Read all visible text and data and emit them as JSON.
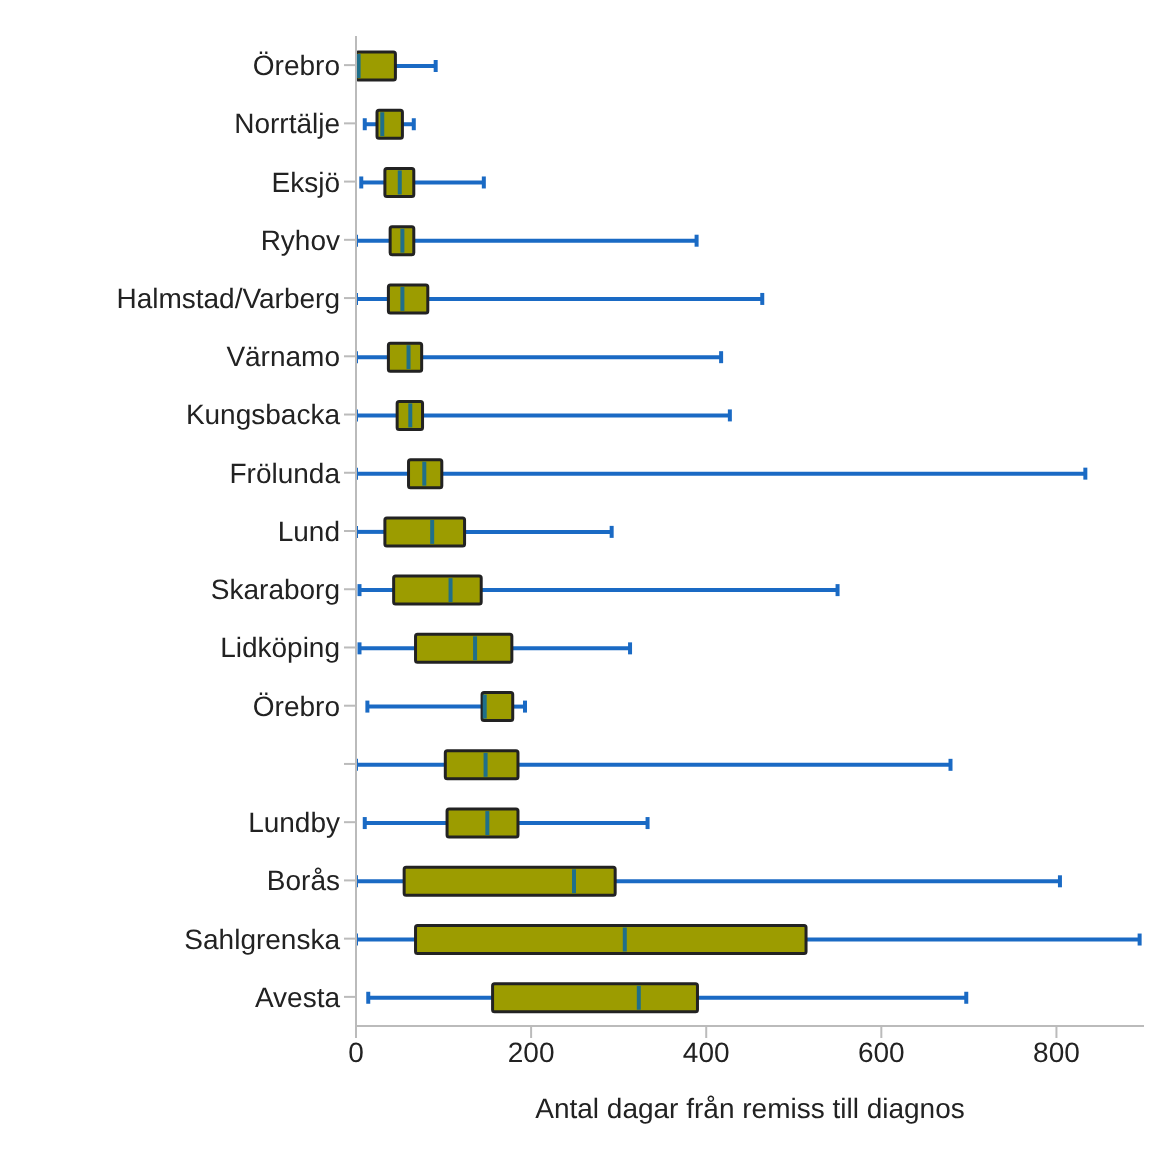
{
  "chart_data": {
    "type": "box",
    "orientation": "horizontal",
    "xlabel": "Antal dagar från remiss till diagnos",
    "color": "#9c9c00",
    "categories": [
      "Örebro",
      "Norrtälje",
      "Eksjö",
      "Ryhov",
      "Halmstad/Varberg",
      "Värnamo",
      "Kungsbacka",
      "Frölunda",
      "Lund",
      "Skaraborg",
      "Lidköping",
      "Örebro",
      null,
      "Lundby",
      "Borås",
      "Sahlgrenska",
      "Avesta"
    ],
    "boxes": [
      {
        "low": 0,
        "q1": 0,
        "median": 3,
        "q3": 45,
        "high": 91
      },
      {
        "low": 10,
        "q1": 24,
        "median": 30,
        "q3": 53,
        "high": 66
      },
      {
        "low": 6,
        "q1": 33,
        "median": 50,
        "q3": 66,
        "high": 146
      },
      {
        "low": 0,
        "q1": 39,
        "median": 53,
        "q3": 66,
        "high": 389
      },
      {
        "low": 0,
        "q1": 37,
        "median": 53,
        "q3": 82,
        "high": 464
      },
      {
        "low": 0,
        "q1": 37,
        "median": 60,
        "q3": 75,
        "high": 417
      },
      {
        "low": 0,
        "q1": 47,
        "median": 62,
        "q3": 76,
        "high": 427
      },
      {
        "low": 0,
        "q1": 60,
        "median": 78,
        "q3": 98,
        "high": 833
      },
      {
        "low": 0,
        "q1": 33,
        "median": 87,
        "q3": 124,
        "high": 292
      },
      {
        "low": 4,
        "q1": 43,
        "median": 108,
        "q3": 143,
        "high": 550
      },
      {
        "low": 4,
        "q1": 68,
        "median": 136,
        "q3": 178,
        "high": 313
      },
      {
        "low": 13,
        "q1": 144,
        "median": 147,
        "q3": 179,
        "high": 193
      },
      {
        "low": 0,
        "q1": 102,
        "median": 148,
        "q3": 185,
        "high": 679
      },
      {
        "low": 10,
        "q1": 104,
        "median": 150,
        "q3": 185,
        "high": 333
      },
      {
        "low": 0,
        "q1": 55,
        "median": 249,
        "q3": 296,
        "high": 804
      },
      {
        "low": 0,
        "q1": 68,
        "median": 307,
        "q3": 514,
        "high": 895
      },
      {
        "low": 14,
        "q1": 156,
        "median": 323,
        "q3": 390,
        "high": 697
      }
    ],
    "xlim": [
      0,
      900
    ],
    "xticks": [
      0,
      200,
      400,
      600,
      800
    ]
  }
}
